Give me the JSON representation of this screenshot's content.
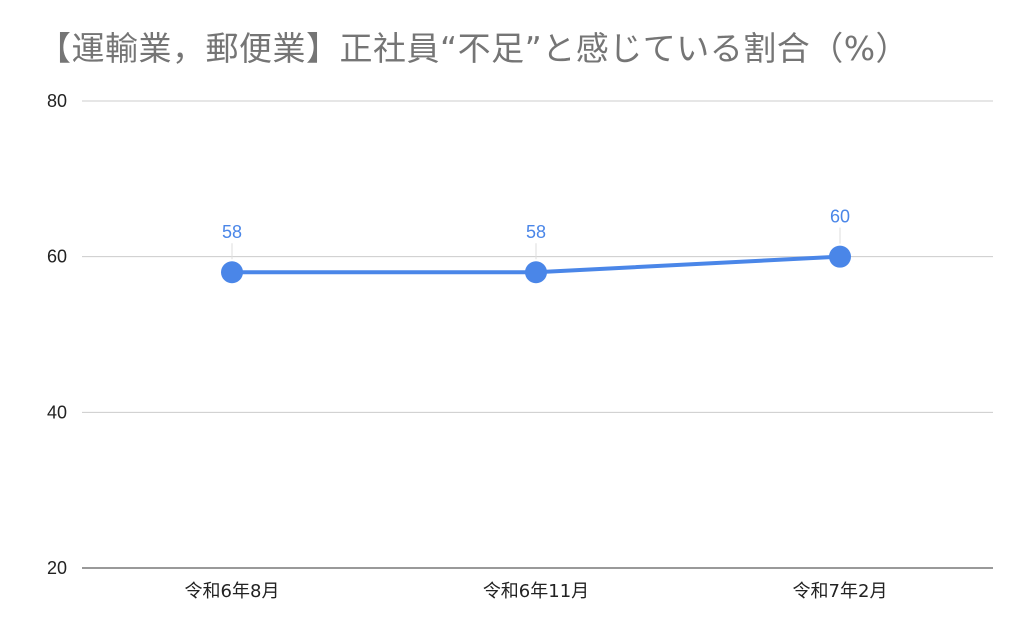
{
  "chart_data": {
    "type": "line",
    "title": "【運輸業，郵便業】正社員“不足”と感じている割合（%）",
    "categories": [
      "令和6年8月",
      "令和6年11月",
      "令和7年2月"
    ],
    "series": [
      {
        "values": [
          58,
          58,
          60
        ],
        "color": "#4a86e8"
      }
    ],
    "data_labels": [
      "58",
      "58",
      "60"
    ],
    "ylim": [
      20,
      80
    ],
    "yticks": [
      20,
      40,
      60,
      80
    ],
    "ytick_labels": [
      "20",
      "40",
      "60",
      "80"
    ],
    "grid": true,
    "legend": "none",
    "gridline_color": "#cccccc",
    "axis_color": "#333333"
  }
}
